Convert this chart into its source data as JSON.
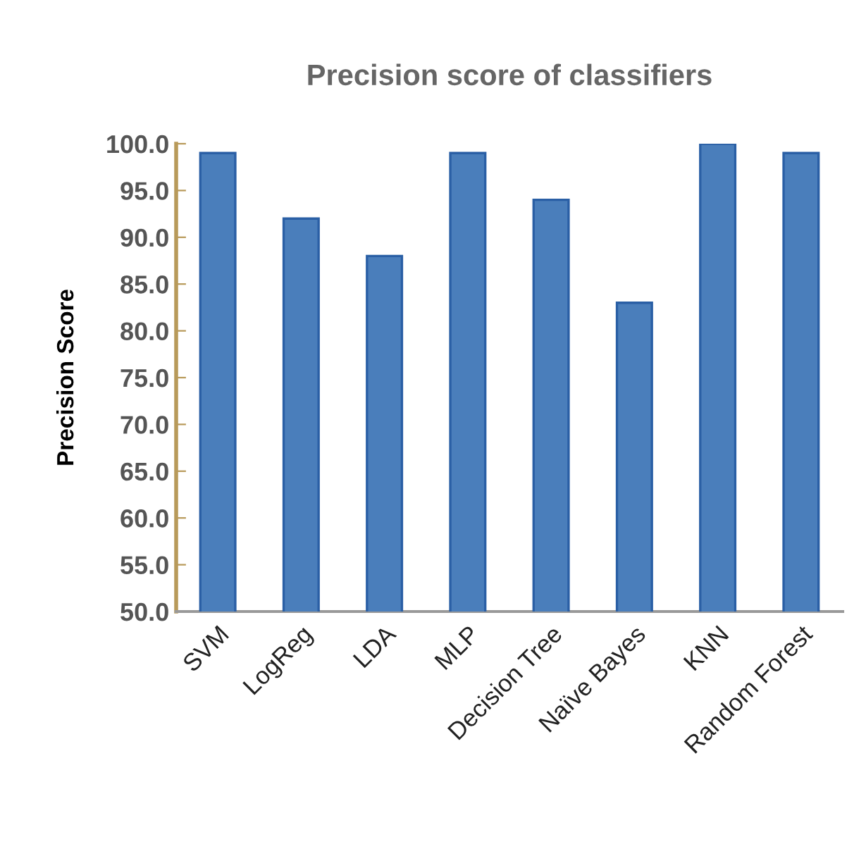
{
  "chart_data": {
    "type": "bar",
    "title": "Precision score of classifiers",
    "ylabel": "Precision Score",
    "categories": [
      "SVM",
      "LogReg",
      "LDA",
      "MLP",
      "Decision Tree",
      "Naïve Bayes",
      "KNN",
      "Random Forest"
    ],
    "values": [
      99,
      92,
      88,
      99,
      94,
      83,
      100,
      99
    ],
    "color": "#4a7ebb",
    "ylim": [
      50,
      100
    ],
    "yticks": [
      {
        "value": 50,
        "label": "50.0"
      },
      {
        "value": 55,
        "label": "55.0"
      },
      {
        "value": 60,
        "label": "60.0"
      },
      {
        "value": 65,
        "label": "65.0"
      },
      {
        "value": 70,
        "label": "70.0"
      },
      {
        "value": 75,
        "label": "75.0"
      },
      {
        "value": 80,
        "label": "80.0"
      },
      {
        "value": 85,
        "label": "85.0"
      },
      {
        "value": 90,
        "label": "90.0"
      },
      {
        "value": 95,
        "label": "95.0"
      },
      {
        "value": 100,
        "label": "100.0"
      }
    ],
    "grid": false,
    "legend": false
  }
}
